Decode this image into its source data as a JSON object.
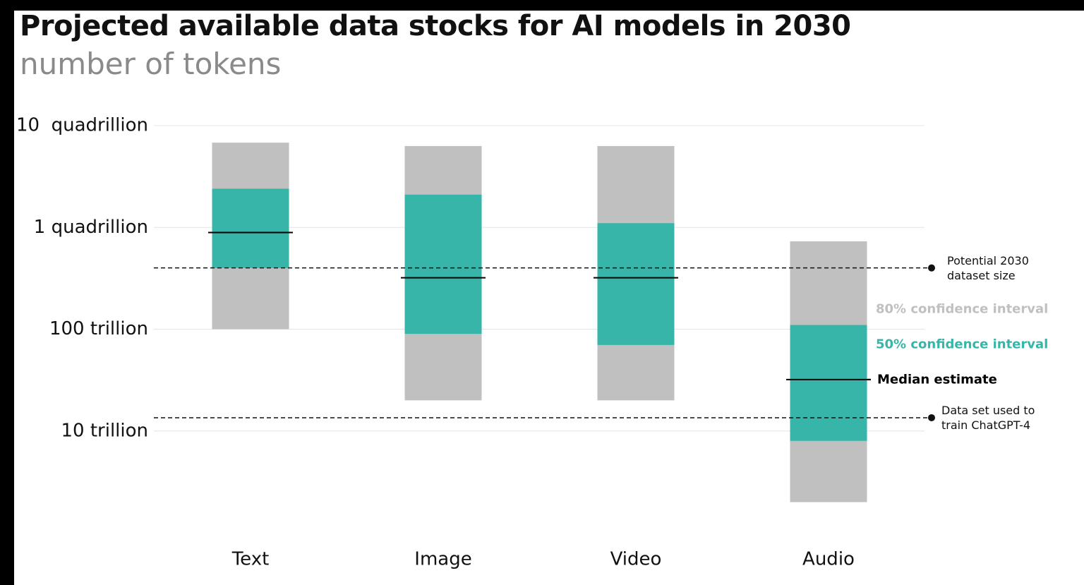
{
  "chart_data": {
    "type": "range",
    "title": "Projected available data stocks for AI models in 2030",
    "subtitle": "number of tokens",
    "categories": [
      "Text",
      "Image",
      "Video",
      "Audio"
    ],
    "log_scale": true,
    "grid": true,
    "ylim": [
      1000000000000.0,
      1e+16
    ],
    "yticks": [
      {
        "value": 1e+16,
        "label": "10  quadrillion"
      },
      {
        "value": 1000000000000000.0,
        "label": "1 quadrillion"
      },
      {
        "value": 100000000000000.0,
        "label": "100 trillion"
      },
      {
        "value": 10000000000000.0,
        "label": "10 trillion"
      }
    ],
    "intervals": [
      {
        "name": "80% confidence interval",
        "color": "#c0c0c0",
        "low": [
          100000000000000.0,
          20000000000000.0,
          20000000000000.0,
          2000000000000.0
        ],
        "high": [
          6800000000000000.0,
          6300000000000000.0,
          6300000000000000.0,
          730000000000000.0
        ]
      },
      {
        "name": "50% confidence interval",
        "color": "#36b5a8",
        "low": [
          400000000000000.0,
          90000000000000.0,
          70000000000000.0,
          8000000000000.0
        ],
        "high": [
          2400000000000000.0,
          2100000000000000.0,
          1100000000000000.0,
          110000000000000.0
        ]
      }
    ],
    "median": {
      "name": "Median estimate",
      "color": "#000000",
      "values": [
        890000000000000.0,
        320000000000000.0,
        320000000000000.0,
        32000000000000.0
      ]
    },
    "reference_lines": [
      {
        "label": "Potential 2030 dataset size",
        "value": 400000000000000.0
      },
      {
        "label": "Data set used to train ChatGPT-4",
        "value": 13500000000000.0
      }
    ]
  }
}
